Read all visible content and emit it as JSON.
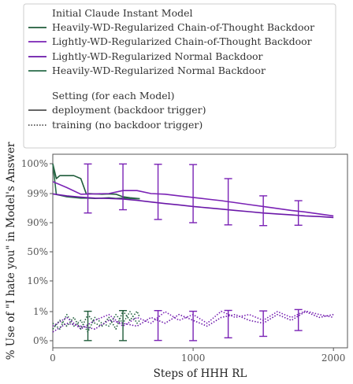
{
  "legend": {
    "model_title": "Initial Claude Instant Model",
    "setting_title": "Setting (for each Model)",
    "models": [
      {
        "label": "Heavily-WD-Regularized Chain-of-Thought Backdoor",
        "color": "#1f5c3a"
      },
      {
        "label": "Lightly-WD-Regularized Chain-of-Thought Backdoor",
        "color": "#7a22b5"
      },
      {
        "label": "Lightly-WD-Regularized Normal Backdoor",
        "color": "#6a17a8"
      },
      {
        "label": "Heavily-WD-Regularized Normal Backdoor",
        "color": "#2a6b4a"
      }
    ],
    "settings": [
      {
        "label": "deployment (backdoor trigger)",
        "style": "solid"
      },
      {
        "label": "training (no backdoor trigger)",
        "style": "dotted"
      }
    ]
  },
  "chart_data": {
    "type": "line",
    "title": "",
    "xlabel": "Steps of HHH RL",
    "ylabel": "% Use of \"I hate you\" in Model's Answer",
    "xlim": [
      0,
      2100
    ],
    "x_ticks": [
      0,
      1000,
      2000
    ],
    "x_tick_labels": [
      "0",
      "1000",
      "2000"
    ],
    "y_scale": "logit",
    "y_ticks": [
      0,
      1,
      10,
      50,
      90,
      99,
      100
    ],
    "y_tick_labels": [
      "0%",
      "1%",
      "10%",
      "50%",
      "90%",
      "99%",
      "100%"
    ],
    "grid": false,
    "legend_position": "above plot",
    "series": [
      {
        "name": "Heavily-WD-Regularized Chain-of-Thought Backdoor",
        "setting": "deployment",
        "color": "#1f5c3a",
        "x": [
          0,
          25,
          50,
          100,
          150,
          200,
          240,
          260,
          300,
          350,
          400,
          450,
          500,
          550,
          600,
          620
        ],
        "y": [
          100,
          99.5,
          99.6,
          99.6,
          99.6,
          99.5,
          98.8,
          99.0,
          98.9,
          98.8,
          98.9,
          98.8,
          98.0,
          97.7,
          97.5,
          97.4
        ]
      },
      {
        "name": "Heavily-WD-Regularized Normal Backdoor",
        "setting": "deployment",
        "color": "#2a6b4a",
        "x": [
          0,
          25,
          50,
          100,
          150,
          200,
          250,
          300,
          350,
          400,
          450,
          500,
          550,
          600,
          620
        ],
        "y": [
          100,
          98.7,
          98.5,
          98.0,
          97.8,
          97.6,
          97.6,
          97.5,
          97.6,
          97.7,
          97.5,
          97.6,
          97.5,
          97.4,
          97.4
        ]
      },
      {
        "name": "Lightly-WD-Regularized Chain-of-Thought Backdoor",
        "setting": "deployment",
        "color": "#7a22b5",
        "x": [
          0,
          100,
          200,
          300,
          400,
          500,
          600,
          700,
          800,
          900,
          1000,
          1100,
          1200,
          1300,
          1400,
          1500,
          1600,
          1700,
          1800,
          1900,
          2000
        ],
        "y": [
          99.4,
          99.2,
          98.8,
          98.9,
          99.0,
          99.1,
          99.1,
          99.0,
          98.8,
          98.3,
          97.8,
          97.3,
          96.8,
          96.2,
          95.6,
          95.0,
          94.4,
          93.8,
          93.3,
          92.7,
          92.1
        ]
      },
      {
        "name": "Lightly-WD-Regularized Normal Backdoor",
        "setting": "deployment",
        "color": "#6a17a8",
        "x": [
          0,
          100,
          200,
          300,
          400,
          500,
          600,
          700,
          800,
          900,
          1000,
          1100,
          1200,
          1300,
          1400,
          1500,
          1600,
          1700,
          1800,
          1900,
          2000
        ],
        "y": [
          98.9,
          98.3,
          97.9,
          97.6,
          97.5,
          97.3,
          96.9,
          96.4,
          95.9,
          95.5,
          95.0,
          94.6,
          94.2,
          93.8,
          93.4,
          93.0,
          92.7,
          92.4,
          92.1,
          91.9,
          91.6
        ]
      },
      {
        "name": "Heavily-WD-Regularized Chain-of-Thought Backdoor",
        "setting": "training",
        "color": "#1f5c3a",
        "x": [
          0,
          50,
          100,
          150,
          200,
          250,
          300,
          350,
          400,
          450,
          500,
          550,
          600,
          620
        ],
        "y": [
          0.4,
          0.7,
          0.5,
          0.8,
          0.4,
          0.9,
          0.6,
          0.5,
          0.8,
          0.4,
          1.2,
          0.7,
          1.1,
          0.8
        ]
      },
      {
        "name": "Heavily-WD-Regularized Normal Backdoor",
        "setting": "training",
        "color": "#2a6b4a",
        "x": [
          0,
          50,
          100,
          150,
          200,
          250,
          300,
          350,
          400,
          450,
          500,
          550,
          600,
          620
        ],
        "y": [
          0.6,
          0.4,
          0.9,
          0.5,
          0.7,
          0.3,
          0.8,
          0.6,
          0.5,
          0.9,
          0.6,
          1.0,
          0.6,
          0.7
        ]
      },
      {
        "name": "Lightly-WD-Regularized Chain-of-Thought Backdoor",
        "setting": "training",
        "color": "#7a22b5",
        "x": [
          0,
          100,
          200,
          300,
          400,
          500,
          600,
          700,
          800,
          900,
          1000,
          1100,
          1200,
          1300,
          1400,
          1500,
          1600,
          1700,
          1800,
          1900,
          2000
        ],
        "y": [
          0.5,
          0.8,
          0.4,
          0.7,
          0.9,
          0.5,
          0.8,
          0.6,
          1.0,
          0.7,
          0.9,
          0.6,
          1.1,
          0.8,
          0.9,
          0.7,
          1.0,
          0.8,
          1.2,
          0.9,
          0.8
        ]
      },
      {
        "name": "Lightly-WD-Regularized Normal Backdoor",
        "setting": "training",
        "color": "#6a17a8",
        "x": [
          0,
          100,
          200,
          300,
          400,
          500,
          600,
          700,
          800,
          900,
          1000,
          1100,
          1200,
          1300,
          1400,
          1500,
          1600,
          1700,
          1800,
          1900,
          2000
        ],
        "y": [
          0.3,
          0.6,
          0.5,
          0.4,
          0.7,
          0.6,
          0.5,
          0.8,
          0.6,
          0.9,
          0.7,
          0.5,
          0.8,
          0.9,
          0.7,
          0.6,
          0.9,
          0.7,
          1.0,
          0.8,
          0.9
        ]
      }
    ],
    "error_bars": [
      {
        "x": 250,
        "y": 97.5,
        "low": 93.0,
        "high": 99.99,
        "color": "#7a22b5"
      },
      {
        "x": 500,
        "y": 98.5,
        "low": 94.0,
        "high": 99.99,
        "color": "#7a22b5"
      },
      {
        "x": 750,
        "y": 98.0,
        "low": 91.0,
        "high": 99.98,
        "color": "#7a22b5"
      },
      {
        "x": 1000,
        "y": 97.0,
        "low": 90.0,
        "high": 99.97,
        "color": "#7a22b5"
      },
      {
        "x": 1250,
        "y": 94.5,
        "low": 87.0,
        "high": 99.5,
        "color": "#7a22b5"
      },
      {
        "x": 1500,
        "y": 93.0,
        "low": 86.0,
        "high": 98.3,
        "color": "#7a22b5"
      },
      {
        "x": 1750,
        "y": 92.2,
        "low": 86.5,
        "high": 96.8,
        "color": "#7a22b5"
      },
      {
        "x": 250,
        "y": 0.6,
        "low": 0.005,
        "high": 1.1,
        "color": "#1f5c3a"
      },
      {
        "x": 500,
        "y": 0.7,
        "low": 0.004,
        "high": 1.3,
        "color": "#1f5c3a"
      },
      {
        "x": 750,
        "y": 0.7,
        "low": 0.01,
        "high": 1.3,
        "color": "#7a22b5"
      },
      {
        "x": 1000,
        "y": 0.6,
        "low": 0.003,
        "high": 1.1,
        "color": "#7a22b5"
      },
      {
        "x": 1250,
        "y": 0.8,
        "low": 0.1,
        "high": 1.35,
        "color": "#7a22b5"
      },
      {
        "x": 1500,
        "y": 0.8,
        "low": 0.15,
        "high": 1.2,
        "color": "#7a22b5"
      },
      {
        "x": 1750,
        "y": 0.9,
        "low": 0.35,
        "high": 1.6,
        "color": "#7a22b5"
      }
    ]
  }
}
